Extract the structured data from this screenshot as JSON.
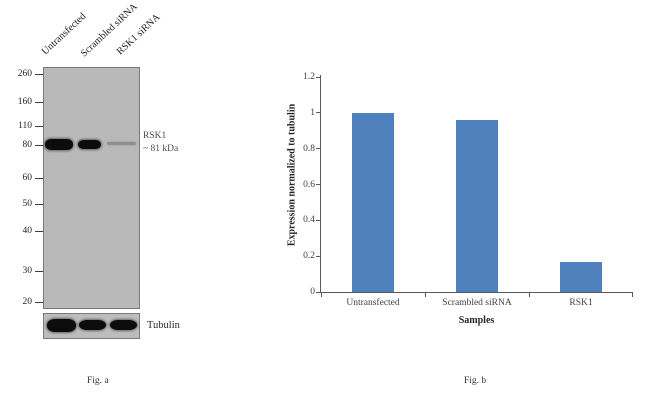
{
  "figure": {
    "panel_a": {
      "fig_label": "Fig. a",
      "lane_labels": [
        "Untransfected",
        "Scrambled siRNA",
        "RSK1 siRNA"
      ],
      "mw_markers": [
        "260",
        "160",
        "110",
        "80",
        "60",
        "50",
        "40",
        "30",
        "20"
      ],
      "target_label_line1": "RSK1",
      "target_label_line2": "~ 81 kDa",
      "loading_control_label": "Tubulin",
      "band_intensities": [
        "strong",
        "strong",
        "faint"
      ]
    },
    "panel_b": {
      "fig_label": "Fig. b"
    }
  },
  "chart_data": {
    "type": "bar",
    "title": "",
    "categories": [
      "Untransfected",
      "Scrambled siRNA",
      "RSK1"
    ],
    "values": [
      1.0,
      0.96,
      0.17
    ],
    "xlabel": "Samples",
    "ylabel": "Expression normalized to tubulin",
    "ylim": [
      0,
      1.2
    ],
    "yticks": [
      0,
      0.2,
      0.4,
      0.6,
      0.8,
      1,
      1.2
    ],
    "yticklabels": [
      "0",
      "0.2",
      "0.4",
      "0.6",
      "0.8",
      "1",
      "1.2"
    ],
    "bar_color": "#4f81bd",
    "axis_color": "#595959",
    "grid": false,
    "legend": "none"
  }
}
